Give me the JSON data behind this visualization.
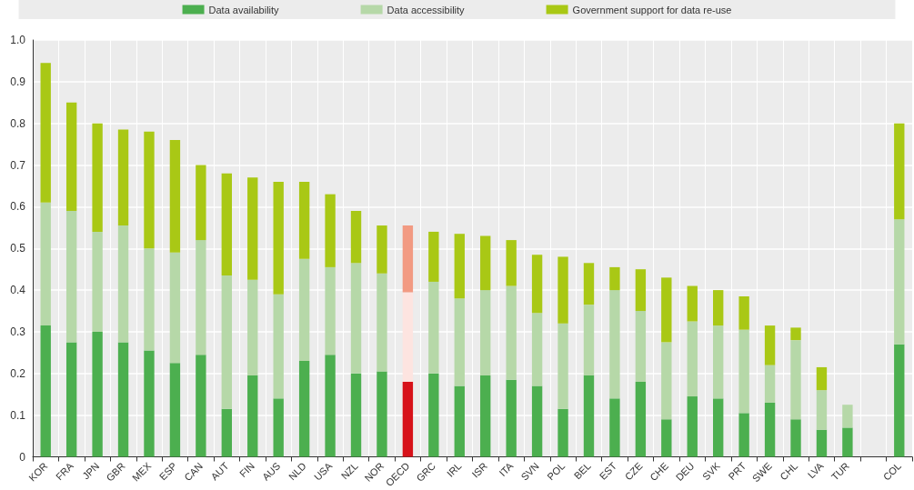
{
  "chart_data": {
    "type": "bar",
    "stacked": true,
    "categories": [
      "KOR",
      "FRA",
      "JPN",
      "GBR",
      "MEX",
      "ESP",
      "CAN",
      "AUT",
      "FIN",
      "AUS",
      "NLD",
      "USA",
      "NZL",
      "NOR",
      "OECD",
      "GRC",
      "IRL",
      "ISR",
      "ITA",
      "SVN",
      "POL",
      "BEL",
      "EST",
      "CZE",
      "CHE",
      "DEU",
      "SVK",
      "PRT",
      "SWE",
      "CHL",
      "LVA",
      "TUR",
      null,
      "COL"
    ],
    "series": [
      {
        "name": "Data availability",
        "color": "#4caf4f",
        "colors": [
          "#4caf4f",
          "#4caf4f",
          "#4caf4f",
          "#4caf4f",
          "#4caf4f",
          "#4caf4f",
          "#4caf4f",
          "#4caf4f",
          "#4caf4f",
          "#4caf4f",
          "#4caf4f",
          "#4caf4f",
          "#4caf4f",
          "#4caf4f",
          "#d7121a",
          "#4caf4f",
          "#4caf4f",
          "#4caf4f",
          "#4caf4f",
          "#4caf4f",
          "#4caf4f",
          "#4caf4f",
          "#4caf4f",
          "#4caf4f",
          "#4caf4f",
          "#4caf4f",
          "#4caf4f",
          "#4caf4f",
          "#4caf4f",
          "#4caf4f",
          "#4caf4f",
          "#4caf4f",
          "#4caf4f",
          "#4caf4f"
        ],
        "values": [
          0.315,
          0.275,
          0.3,
          0.275,
          0.255,
          0.225,
          0.245,
          0.115,
          0.195,
          0.14,
          0.23,
          0.245,
          0.2,
          0.205,
          0.18,
          0.2,
          0.17,
          0.195,
          0.185,
          0.17,
          0.115,
          0.195,
          0.14,
          0.18,
          0.09,
          0.145,
          0.14,
          0.105,
          0.13,
          0.09,
          0.065,
          0.07,
          null,
          0.27
        ]
      },
      {
        "name": "Data accessibility",
        "color": "#b6d8a8",
        "colors": [
          "#b6d8a8",
          "#b6d8a8",
          "#b6d8a8",
          "#b6d8a8",
          "#b6d8a8",
          "#b6d8a8",
          "#b6d8a8",
          "#b6d8a8",
          "#b6d8a8",
          "#b6d8a8",
          "#b6d8a8",
          "#b6d8a8",
          "#b6d8a8",
          "#b6d8a8",
          "#fde4e0",
          "#b6d8a8",
          "#b6d8a8",
          "#b6d8a8",
          "#b6d8a8",
          "#b6d8a8",
          "#b6d8a8",
          "#b6d8a8",
          "#b6d8a8",
          "#b6d8a8",
          "#b6d8a8",
          "#b6d8a8",
          "#b6d8a8",
          "#b6d8a8",
          "#b6d8a8",
          "#b6d8a8",
          "#b6d8a8",
          "#b6d8a8",
          "#b6d8a8",
          "#b6d8a8"
        ],
        "values": [
          0.295,
          0.315,
          0.24,
          0.28,
          0.245,
          0.265,
          0.275,
          0.32,
          0.23,
          0.25,
          0.245,
          0.21,
          0.265,
          0.235,
          0.215,
          0.22,
          0.21,
          0.205,
          0.225,
          0.175,
          0.205,
          0.17,
          0.26,
          0.17,
          0.185,
          0.18,
          0.175,
          0.2,
          0.09,
          0.19,
          0.095,
          0.055,
          null,
          0.3
        ]
      },
      {
        "name": "Government support for data re-use",
        "color": "#a9c815",
        "colors": [
          "#a9c815",
          "#a9c815",
          "#a9c815",
          "#a9c815",
          "#a9c815",
          "#a9c815",
          "#a9c815",
          "#a9c815",
          "#a9c815",
          "#a9c815",
          "#a9c815",
          "#a9c815",
          "#a9c815",
          "#a9c815",
          "#f29a82",
          "#a9c815",
          "#a9c815",
          "#a9c815",
          "#a9c815",
          "#a9c815",
          "#a9c815",
          "#a9c815",
          "#a9c815",
          "#a9c815",
          "#a9c815",
          "#a9c815",
          "#a9c815",
          "#a9c815",
          "#a9c815",
          "#a9c815",
          "#a9c815",
          "#a9c815",
          "#a9c815",
          "#a9c815"
        ],
        "values": [
          0.335,
          0.26,
          0.26,
          0.23,
          0.28,
          0.27,
          0.18,
          0.245,
          0.245,
          0.27,
          0.185,
          0.175,
          0.125,
          0.115,
          0.16,
          0.12,
          0.155,
          0.13,
          0.11,
          0.14,
          0.16,
          0.1,
          0.055,
          0.1,
          0.155,
          0.085,
          0.085,
          0.08,
          0.095,
          0.03,
          0.055,
          null,
          null,
          0.23
        ]
      }
    ],
    "ylim": [
      0,
      1
    ],
    "yticks": [
      0,
      0.1,
      0.2,
      0.3,
      0.4,
      0.5,
      0.6,
      0.7,
      0.8,
      0.9,
      {
        "value": 1,
        "label": "1.0"
      }
    ],
    "grid": true,
    "legend": "top"
  }
}
